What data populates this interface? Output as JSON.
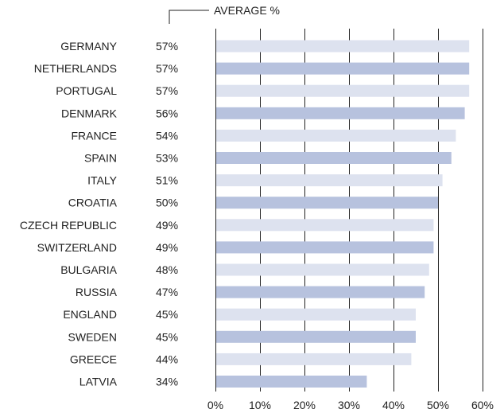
{
  "chart_data": {
    "type": "bar",
    "orientation": "horizontal",
    "legend_label": "AVERAGE %",
    "categories": [
      "GERMANY",
      "NETHERLANDS",
      "PORTUGAL",
      "DENMARK",
      "FRANCE",
      "SPAIN",
      "ITALY",
      "CROATIA",
      "CZECH REPUBLIC",
      "SWITZERLAND",
      "BULGARIA",
      "RUSSIA",
      "ENGLAND",
      "SWEDEN",
      "GREECE",
      "LATVIA"
    ],
    "values": [
      57,
      57,
      57,
      56,
      54,
      53,
      51,
      50,
      49,
      49,
      48,
      47,
      45,
      45,
      44,
      34
    ],
    "value_labels": [
      "57%",
      "57%",
      "57%",
      "56%",
      "54%",
      "53%",
      "51%",
      "50%",
      "49%",
      "49%",
      "48%",
      "47%",
      "45%",
      "45%",
      "44%",
      "34%"
    ],
    "xlim": [
      0,
      60
    ],
    "x_ticks": [
      0,
      10,
      20,
      30,
      40,
      50,
      60
    ],
    "x_tick_labels": [
      "0%",
      "10%",
      "20%",
      "30%",
      "40%",
      "50%",
      "60%"
    ],
    "grid": "vertical",
    "colors": {
      "bar_light": "#dde2ef",
      "bar_dark": "#b7c2de",
      "axis": "#222222",
      "grid": "#222222"
    }
  }
}
